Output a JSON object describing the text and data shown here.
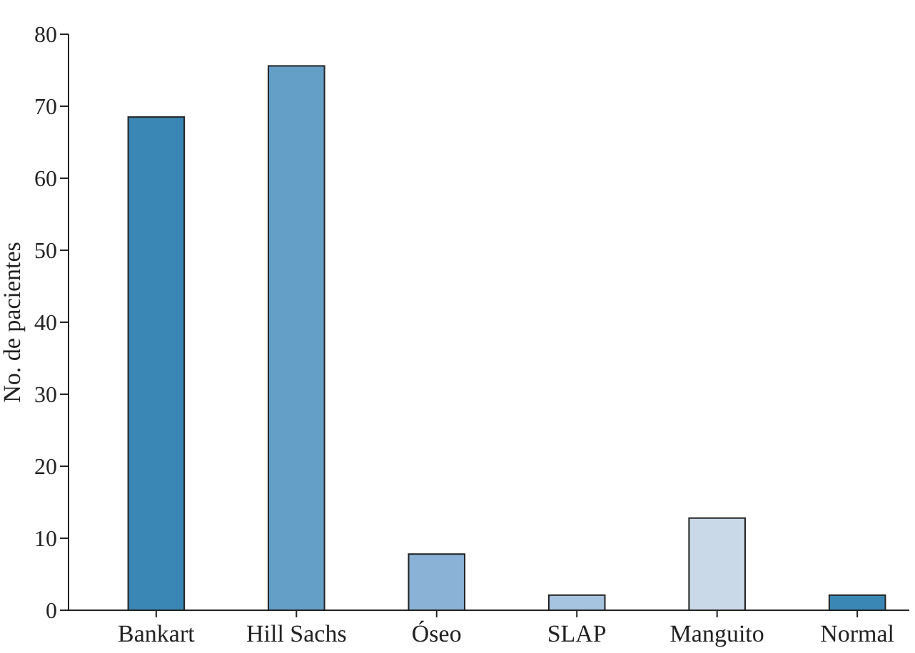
{
  "chart_data": {
    "type": "bar",
    "ylabel": "No. de pacientes",
    "categories": [
      "Bankart",
      "Hill Sachs",
      "Óseo",
      "SLAP",
      "Manguito",
      "Normal"
    ],
    "values": [
      68.5,
      75.6,
      7.8,
      2.1,
      12.8,
      2.1
    ],
    "colors": [
      "#3a87b5",
      "#649fc8",
      "#8ab1d6",
      "#a6c4df",
      "#cad9e8",
      "#3a87b5"
    ],
    "ylim": [
      0,
      80
    ],
    "yticks": [
      0,
      10,
      20,
      30,
      40,
      50,
      60,
      70,
      80
    ],
    "grid": false
  }
}
